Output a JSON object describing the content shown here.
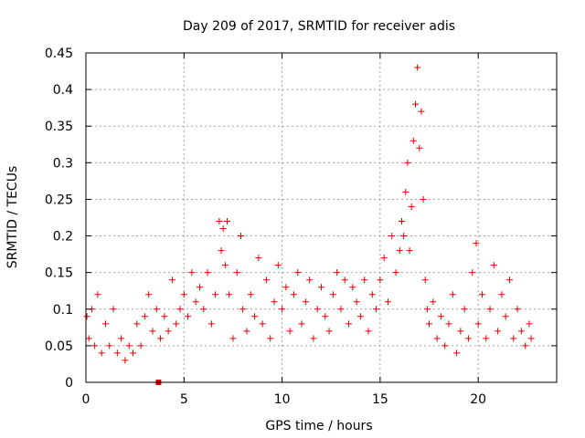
{
  "chart_data": {
    "type": "scatter",
    "title": "Day 209 of 2017, SRMTID for receiver adis",
    "xlabel": "GPS time / hours",
    "ylabel": "SRMTID / TECUs",
    "xlim": [
      0,
      24
    ],
    "ylim": [
      0,
      0.45
    ],
    "xticks": [
      0,
      5,
      10,
      15,
      20
    ],
    "xtick_labels": [
      "0",
      "5",
      "10",
      "15",
      "20"
    ],
    "yticks": [
      0,
      0.05,
      0.1,
      0.15,
      0.2,
      0.25,
      0.3,
      0.35,
      0.4,
      0.45
    ],
    "ytick_labels": [
      "0",
      "0.05",
      "0.1",
      "0.15",
      "0.2",
      "0.25",
      "0.3",
      "0.35",
      "0.4",
      "0.45"
    ],
    "grid": true,
    "marker": "+",
    "color": "#e00000",
    "series": [
      {
        "name": "SRMTID",
        "x": [
          0.05,
          0.15,
          0.3,
          0.45,
          0.6,
          0.8,
          1.0,
          1.2,
          1.4,
          1.6,
          1.8,
          2.0,
          2.2,
          2.4,
          2.6,
          2.8,
          3.0,
          3.2,
          3.4,
          3.6,
          3.8,
          4.0,
          4.2,
          4.4,
          4.6,
          4.8,
          5.0,
          5.2,
          5.4,
          5.6,
          5.8,
          6.0,
          6.2,
          6.4,
          6.6,
          6.8,
          6.9,
          7.0,
          7.1,
          7.2,
          7.3,
          7.5,
          7.7,
          7.9,
          8.0,
          8.2,
          8.4,
          8.6,
          8.8,
          9.0,
          9.2,
          9.4,
          9.6,
          9.8,
          10.0,
          10.2,
          10.4,
          10.6,
          10.8,
          11.0,
          11.2,
          11.4,
          11.6,
          11.8,
          12.0,
          12.2,
          12.4,
          12.6,
          12.8,
          13.0,
          13.2,
          13.4,
          13.6,
          13.8,
          14.0,
          14.2,
          14.4,
          14.6,
          14.8,
          15.0,
          15.2,
          15.4,
          15.6,
          15.8,
          16.0,
          16.1,
          16.2,
          16.3,
          16.4,
          16.5,
          16.6,
          16.7,
          16.8,
          16.9,
          17.0,
          17.1,
          17.2,
          17.3,
          17.4,
          17.5,
          17.7,
          17.9,
          18.1,
          18.3,
          18.5,
          18.7,
          18.9,
          19.1,
          19.3,
          19.5,
          19.7,
          19.9,
          20.0,
          20.2,
          20.4,
          20.6,
          20.8,
          21.0,
          21.2,
          21.4,
          21.6,
          21.8,
          22.0,
          22.2,
          22.4,
          22.6,
          22.7,
          3.7
        ],
        "y": [
          0.09,
          0.06,
          0.1,
          0.05,
          0.12,
          0.04,
          0.08,
          0.05,
          0.1,
          0.04,
          0.06,
          0.03,
          0.05,
          0.04,
          0.08,
          0.05,
          0.09,
          0.12,
          0.07,
          0.1,
          0.06,
          0.09,
          0.07,
          0.14,
          0.08,
          0.1,
          0.12,
          0.09,
          0.15,
          0.11,
          0.13,
          0.1,
          0.15,
          0.08,
          0.12,
          0.22,
          0.18,
          0.21,
          0.16,
          0.22,
          0.12,
          0.06,
          0.15,
          0.2,
          0.1,
          0.07,
          0.12,
          0.09,
          0.17,
          0.08,
          0.14,
          0.06,
          0.11,
          0.16,
          0.1,
          0.13,
          0.07,
          0.12,
          0.15,
          0.08,
          0.11,
          0.14,
          0.06,
          0.1,
          0.13,
          0.09,
          0.07,
          0.12,
          0.15,
          0.1,
          0.14,
          0.08,
          0.13,
          0.11,
          0.09,
          0.14,
          0.07,
          0.12,
          0.1,
          0.14,
          0.17,
          0.11,
          0.2,
          0.15,
          0.18,
          0.22,
          0.2,
          0.26,
          0.3,
          0.18,
          0.24,
          0.33,
          0.38,
          0.43,
          0.32,
          0.37,
          0.25,
          0.14,
          0.1,
          0.08,
          0.11,
          0.06,
          0.09,
          0.05,
          0.08,
          0.12,
          0.04,
          0.07,
          0.1,
          0.06,
          0.15,
          0.19,
          0.08,
          0.12,
          0.06,
          0.1,
          0.16,
          0.07,
          0.12,
          0.09,
          0.14,
          0.06,
          0.1,
          0.07,
          0.05,
          0.08,
          0.06,
          0.0
        ]
      }
    ]
  }
}
